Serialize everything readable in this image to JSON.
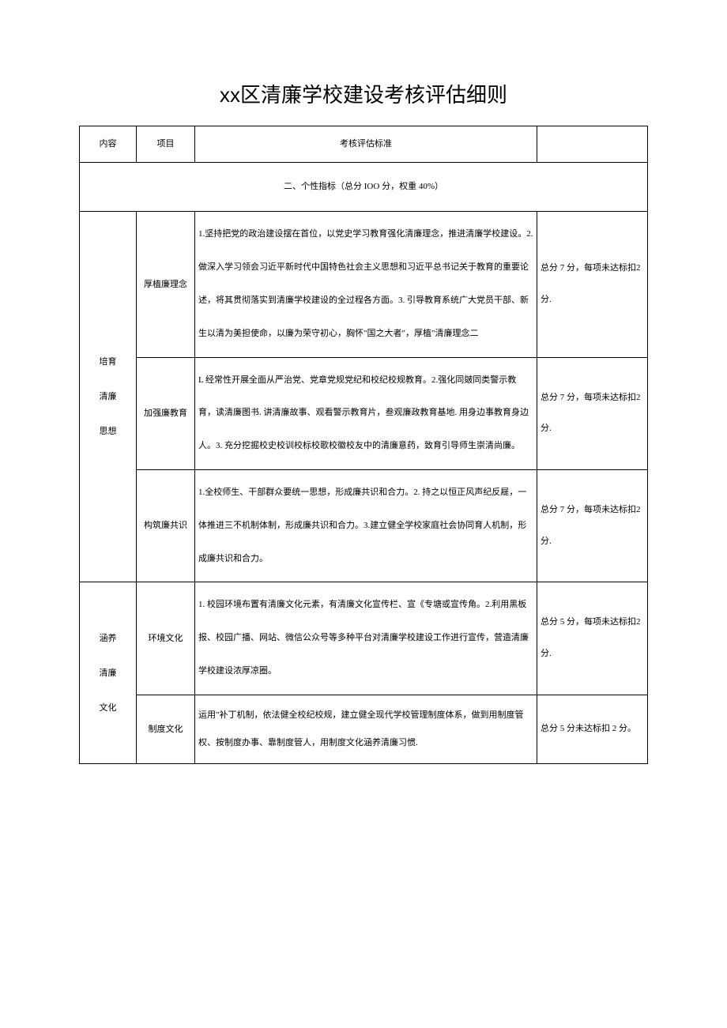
{
  "title": "xx区清廉学校建设考核评估细则",
  "headers": {
    "content": "内容",
    "project": "项目",
    "standard": "考核评估标准"
  },
  "section_header": "二、个性指标（总分 IOO 分，权重 40%）",
  "groups": [
    {
      "content_lines": [
        "培育",
        "清廉",
        "思想"
      ],
      "rows": [
        {
          "project": "厚植廉理念",
          "standard": "1.坚持把党的政治建设摆在首位，以党史学习教育强化清廉理念，推进清廉学校建设。2.做深入学习领会习近平新时代中国特色社会主义思想和习近平总书记关于教育的重要论述，将其贯彻落实到清廉学校建设的全过程各方面。3. 引导教育系统广大党员干部、新生以清为美担使命，以廉为荣守初心，胸怀\"国之大者\"，厚植\"清廉理念二",
          "score": "总分 7 分，每项未达标扣2 分."
        },
        {
          "project": "加强廉教育",
          "standard": "L 经常性开展全面从严治党、党章党规党纪和校纪校规教育。2.强化同皴同类警示教育，读清廉图书. 讲清廉故事、观看警示教育片，叁观廉政教育基地. 用身边事教育身边人。3. 充分挖掘校史校训校标校歌校徽校友中的清廉意药，致育引导师生崇清尚廉。",
          "score": "总分 7 分，每项未达标扣2 分."
        },
        {
          "project": "构筑廉共识",
          "standard": "1.全校师生、干部群众要统一思想，形成廉共识和合力。2. 持之以恒正风声纪反屣，一体推进三不机制体制，形成廉共识和合力。3.建立健全学校家庭社会协同育人机制，形成廉共识和合力。",
          "score": "总分 7 分，每项未达标扣2 分."
        }
      ]
    },
    {
      "content_lines": [
        "涵养",
        "清廉",
        "文化"
      ],
      "rows": [
        {
          "project": "环境文化",
          "standard": "1. 校园环境布置有清廉文化元素，有清廉文化宣传栏、宣《专塘或宣传角。2.利用黑板报、校园广播、网站、微信公众号等多种平台对清廉学校建设工作进行宣传，营造清廉学校建设浓厚凉圈。",
          "score": "总分 5 分，每项未达标扣2 分."
        },
        {
          "project": "制度文化",
          "standard": "运用\"补丁机制，依法健全校纪校规，建立健全现代学校管理制度体系，做到用制度管权、按制度办事、靠制度管人，用制度文化涵养清廉习惯.",
          "score": "总分 5 分未达标扣 2 分。"
        }
      ]
    }
  ]
}
